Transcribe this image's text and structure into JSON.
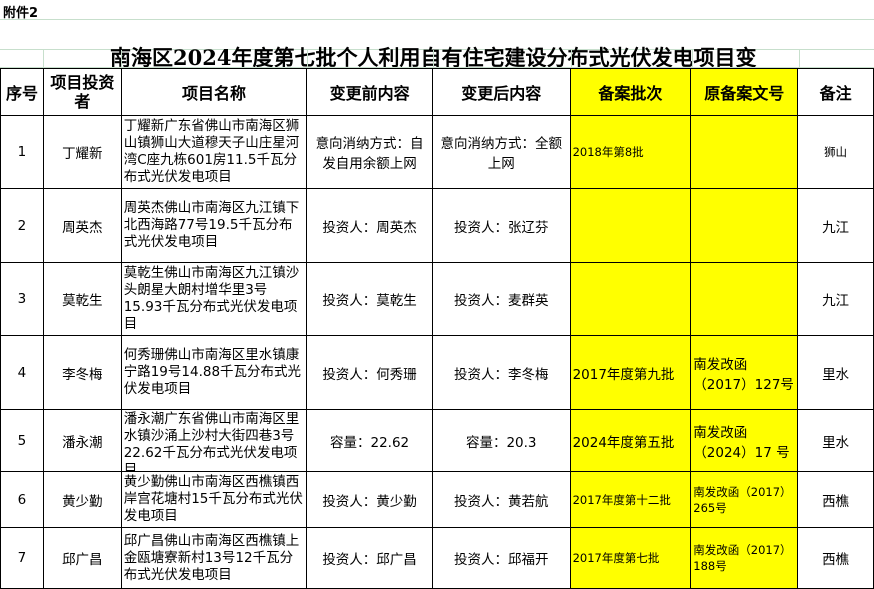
{
  "annex": "附件2",
  "title": "南海区2024年度第七批个人利用自有住宅建设分布式光伏发电项目变",
  "headers": [
    "序号",
    "项目投资者",
    "项目名称",
    "变更前内容",
    "变更后内容",
    "备案批次",
    "原备案文号",
    "备注"
  ],
  "colors": {
    "highlight": "#ffff00",
    "grid": "#c7dfcc"
  },
  "rows": [
    {
      "no": "1",
      "investor": "丁耀新",
      "name": "丁耀新广东省佛山市南海区狮山镇狮山大道穆天子山庄星河湾C座九栋601房11.5千瓦分布式光伏发电项目",
      "before": "意向消纳方式：自发自用余额上网",
      "after": "意向消纳方式：全额上网",
      "batch": "2018年第8批",
      "doc": "",
      "note": "狮山"
    },
    {
      "no": "2",
      "investor": "周英杰",
      "name": "周英杰佛山市南海区九江镇下北西海路77号19.5千瓦分布式光伏发电项目",
      "before": "投资人：周英杰",
      "after": "投资人：张辽芬",
      "batch": "",
      "doc": "",
      "note": "九江"
    },
    {
      "no": "3",
      "investor": "莫乾生",
      "name": "莫乾生佛山市南海区九江镇沙头朗星大朗村增华里3号15.93千瓦分布式光伏发电项目",
      "before": "投资人：莫乾生",
      "after": "投资人：麦群英",
      "batch": "",
      "doc": "",
      "note": "九江"
    },
    {
      "no": "4",
      "investor": "李冬梅",
      "name": "何秀珊佛山市南海区里水镇康宁路19号14.88千瓦分布式光伏发电项目",
      "before": "投资人：何秀珊",
      "after": "投资人：李冬梅",
      "batch": "2017年度第九批",
      "doc": "南发改函（2017）127号",
      "note": "里水"
    },
    {
      "no": "5",
      "investor": "潘永潮",
      "name": "潘永潮广东省佛山市南海区里水镇沙涌上沙村大街四巷3号22.62千瓦分布式光伏发电项目",
      "before": "容量：22.62",
      "after": "容量：20.3",
      "batch": "2024年度第五批",
      "doc": "南发改函（2024）17 号",
      "note": "里水"
    },
    {
      "no": "6",
      "investor": "黄少勤",
      "name": "黄少勤佛山市南海区西樵镇西岸宫花塘村15千瓦分布式光伏发电项目",
      "before": "投资人：黄少勤",
      "after": "投资人：黄若航",
      "batch": "2017年度第十二批",
      "doc": "南发改函（2017）265号",
      "note": "西樵"
    },
    {
      "no": "7",
      "investor": "邱广昌",
      "name": "邱广昌佛山市南海区西樵镇上金瓯塘寮新村13号12千瓦分布式光伏发电项目",
      "before": "投资人：邱广昌",
      "after": "投资人：邱福开",
      "batch": "2017年度第七批",
      "doc": "南发改函（2017）188号",
      "note": "西樵"
    }
  ]
}
